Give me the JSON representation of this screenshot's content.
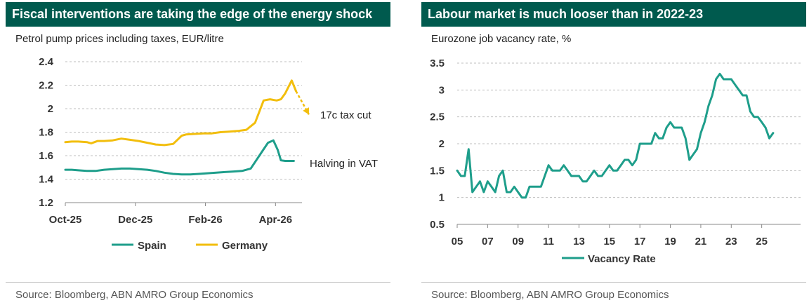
{
  "left": {
    "title": "Fiscal interventions are taking the edge of the energy shock",
    "subtitle": "Petrol pump prices including taxes, EUR/litre",
    "source": "Source: Bloomberg, ABN AMRO Group Economics",
    "annotation_germany": "17c tax cut",
    "annotation_spain": "Halving in VAT",
    "legend": [
      "Spain",
      "Germany"
    ]
  },
  "right": {
    "title": "Labour market is much looser than in 2022-23",
    "subtitle": "Eurozone job vacancy rate, %",
    "source": "Source: Bloomberg, ABN AMRO Group Economics",
    "legend": [
      "Vacancy Rate"
    ]
  },
  "colors": {
    "teal": "#1e9e8b",
    "gold": "#f2be0d",
    "header": "#005a4e"
  },
  "chart_data": [
    {
      "type": "line",
      "title": "Fiscal interventions are taking the edge of the energy shock",
      "ylabel": "EUR/litre",
      "ylim": [
        1.2,
        2.4
      ],
      "yticks": [
        "1.2",
        "1.4",
        "1.6",
        "1.8",
        "2",
        "2.2",
        "2.4"
      ],
      "xlim": [
        0,
        1
      ],
      "xticks": [
        {
          "label": "Oct-25",
          "x": 0.0
        },
        {
          "label": "Dec-25",
          "x": 0.325
        },
        {
          "label": "Feb-26",
          "x": 0.65
        },
        {
          "label": "Apr-26",
          "x": 0.975
        }
      ],
      "series": [
        {
          "name": "Spain",
          "color": "#1e9e8b",
          "x": [
            0.0,
            0.03,
            0.06,
            0.1,
            0.14,
            0.18,
            0.22,
            0.26,
            0.3,
            0.34,
            0.38,
            0.42,
            0.46,
            0.5,
            0.54,
            0.58,
            0.62,
            0.66,
            0.7,
            0.74,
            0.78,
            0.82,
            0.86,
            0.9,
            0.94,
            0.965,
            0.985,
            1.0,
            1.02,
            1.04,
            1.06
          ],
          "values": [
            1.48,
            1.48,
            1.475,
            1.47,
            1.47,
            1.48,
            1.485,
            1.49,
            1.49,
            1.485,
            1.48,
            1.47,
            1.455,
            1.445,
            1.44,
            1.44,
            1.445,
            1.45,
            1.455,
            1.46,
            1.465,
            1.47,
            1.49,
            1.6,
            1.71,
            1.73,
            1.65,
            1.56,
            1.555,
            1.555,
            1.555
          ]
        },
        {
          "name": "Germany",
          "color": "#f2be0d",
          "x": [
            0.0,
            0.03,
            0.06,
            0.1,
            0.12,
            0.15,
            0.18,
            0.22,
            0.26,
            0.3,
            0.34,
            0.38,
            0.42,
            0.46,
            0.5,
            0.54,
            0.56,
            0.6,
            0.64,
            0.68,
            0.72,
            0.76,
            0.8,
            0.84,
            0.88,
            0.92,
            0.95,
            0.98,
            1.0,
            1.02,
            1.05,
            1.07
          ],
          "values": [
            1.715,
            1.72,
            1.72,
            1.715,
            1.705,
            1.725,
            1.725,
            1.73,
            1.745,
            1.735,
            1.725,
            1.71,
            1.695,
            1.69,
            1.7,
            1.77,
            1.78,
            1.785,
            1.79,
            1.79,
            1.8,
            1.805,
            1.81,
            1.82,
            1.88,
            2.07,
            2.08,
            2.07,
            2.08,
            2.13,
            2.24,
            2.15
          ]
        }
      ],
      "projection": {
        "series": "Germany",
        "x": [
          1.07,
          1.13
        ],
        "values": [
          2.15,
          1.95
        ]
      }
    },
    {
      "type": "line",
      "title": "Labour market is much looser than in 2022-23",
      "ylabel": "%",
      "ylim": [
        0.5,
        3.5
      ],
      "yticks": [
        "0.5",
        "1",
        "1.5",
        "2",
        "2.5",
        "3",
        "3.5"
      ],
      "xlim": [
        2005,
        2025.8
      ],
      "xticks": [
        {
          "label": "05",
          "x": 2005
        },
        {
          "label": "07",
          "x": 2007
        },
        {
          "label": "09",
          "x": 2009
        },
        {
          "label": "11",
          "x": 2011
        },
        {
          "label": "13",
          "x": 2013
        },
        {
          "label": "15",
          "x": 2015
        },
        {
          "label": "17",
          "x": 2017
        },
        {
          "label": "19",
          "x": 2019
        },
        {
          "label": "21",
          "x": 2021
        },
        {
          "label": "23",
          "x": 2023
        },
        {
          "label": "25",
          "x": 2025
        }
      ],
      "series": [
        {
          "name": "Vacancy Rate",
          "color": "#1e9e8b",
          "x": [
            2005,
            2005.25,
            2005.5,
            2005.75,
            2006,
            2006.25,
            2006.5,
            2006.75,
            2007,
            2007.25,
            2007.5,
            2007.75,
            2008,
            2008.25,
            2008.5,
            2008.75,
            2009,
            2009.25,
            2009.5,
            2009.75,
            2010,
            2010.25,
            2010.5,
            2010.75,
            2011,
            2011.25,
            2011.5,
            2011.75,
            2012,
            2012.25,
            2012.5,
            2012.75,
            2013,
            2013.25,
            2013.5,
            2013.75,
            2014,
            2014.25,
            2014.5,
            2014.75,
            2015,
            2015.25,
            2015.5,
            2015.75,
            2016,
            2016.25,
            2016.5,
            2016.75,
            2017,
            2017.25,
            2017.5,
            2017.75,
            2018,
            2018.25,
            2018.5,
            2018.75,
            2019,
            2019.25,
            2019.5,
            2019.75,
            2020,
            2020.25,
            2020.5,
            2020.75,
            2021,
            2021.25,
            2021.5,
            2021.75,
            2022,
            2022.25,
            2022.5,
            2022.75,
            2023,
            2023.25,
            2023.5,
            2023.75,
            2024,
            2024.25,
            2024.5,
            2024.75,
            2025,
            2025.25,
            2025.5,
            2025.75
          ],
          "values": [
            1.5,
            1.4,
            1.4,
            1.9,
            1.1,
            1.2,
            1.3,
            1.1,
            1.3,
            1.2,
            1.1,
            1.4,
            1.5,
            1.1,
            1.1,
            1.2,
            1.1,
            1.0,
            1.0,
            1.2,
            1.2,
            1.2,
            1.2,
            1.4,
            1.6,
            1.5,
            1.5,
            1.5,
            1.6,
            1.5,
            1.4,
            1.4,
            1.4,
            1.3,
            1.3,
            1.4,
            1.5,
            1.4,
            1.4,
            1.5,
            1.6,
            1.5,
            1.5,
            1.6,
            1.7,
            1.7,
            1.6,
            1.7,
            2.0,
            2.0,
            2.0,
            2.0,
            2.2,
            2.1,
            2.1,
            2.3,
            2.4,
            2.3,
            2.3,
            2.3,
            2.1,
            1.7,
            1.8,
            1.9,
            2.2,
            2.4,
            2.7,
            2.9,
            3.2,
            3.3,
            3.2,
            3.2,
            3.2,
            3.1,
            3.0,
            2.9,
            2.9,
            2.6,
            2.5,
            2.5,
            2.4,
            2.3,
            2.1,
            2.2
          ]
        }
      ]
    }
  ]
}
